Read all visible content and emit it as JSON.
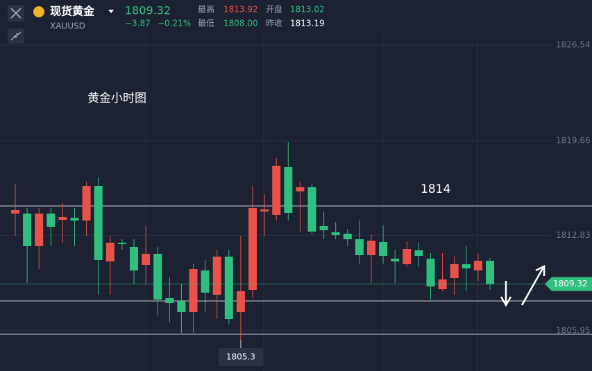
{
  "header": {
    "name": "现货黄金",
    "code": "XAUUSD",
    "price": "1809.32",
    "change": "−3.87",
    "change_pct": "−0.21%",
    "stats": [
      {
        "label": "最高",
        "value": "1813.92"
      },
      {
        "label": "开盘",
        "value": "1813.02"
      },
      {
        "label": "最低",
        "value": "1808.00"
      },
      {
        "label": "昨收",
        "value": "1813.19"
      }
    ]
  },
  "chart_data": {
    "type": "candlestick",
    "title": "黄金小时图",
    "open": [
      1814.4,
      1814.4,
      1812.05,
      1814.4,
      1813.95,
      1814.1,
      1813.9,
      1816.4,
      1810.95,
      1812.3,
      1812.0,
      1810.7,
      1811.5,
      1808.3,
      1808.1,
      1807.3,
      1810.3,
      1808.55,
      1811.3,
      1807.3,
      1808.9,
      1814.55,
      1814.3,
      1817.75,
      1816.0,
      1816.3,
      1813.5,
      1813.05,
      1812.95,
      1812.55,
      1811.4,
      1812.35,
      1811.15,
      1810.75,
      1811.75,
      1811.15,
      1808.95,
      1809.75,
      1810.75,
      1810.3,
      1811.0
    ],
    "close": [
      1814.65,
      1812.05,
      1814.4,
      1813.45,
      1814.15,
      1813.9,
      1816.4,
      1811.05,
      1812.3,
      1812.2,
      1810.3,
      1811.5,
      1808.2,
      1807.95,
      1807.3,
      1810.4,
      1808.7,
      1811.3,
      1806.8,
      1808.8,
      1814.8,
      1814.7,
      1817.85,
      1814.45,
      1816.3,
      1813.1,
      1813.2,
      1812.85,
      1812.55,
      1811.4,
      1812.45,
      1811.35,
      1810.95,
      1811.85,
      1811.35,
      1809.15,
      1809.65,
      1810.75,
      1810.45,
      1811.0,
      1809.32
    ],
    "high": [
      1816.55,
      1814.8,
      1814.8,
      1814.8,
      1815.15,
      1814.8,
      1816.7,
      1817.05,
      1812.8,
      1812.55,
      1812.55,
      1813.5,
      1812.0,
      1809.8,
      1809.3,
      1810.8,
      1811.05,
      1811.8,
      1811.8,
      1812.8,
      1816.4,
      1815.8,
      1818.4,
      1819.55,
      1816.7,
      1816.55,
      1814.55,
      1813.8,
      1813.3,
      1813.9,
      1812.9,
      1813.55,
      1811.8,
      1812.4,
      1812.3,
      1811.55,
      1811.55,
      1811.3,
      1812.05,
      1811.5,
      1811.2
    ],
    "low": [
      1812.8,
      1809.4,
      1810.4,
      1812.05,
      1812.3,
      1812.05,
      1812.8,
      1808.55,
      1808.55,
      1811.8,
      1809.3,
      1809.3,
      1807.05,
      1806.55,
      1805.8,
      1805.8,
      1807.3,
      1806.8,
      1806.4,
      1805.3,
      1808.3,
      1812.8,
      1813.9,
      1813.9,
      1813.05,
      1812.9,
      1812.55,
      1812.55,
      1812.05,
      1810.8,
      1809.4,
      1810.8,
      1809.4,
      1810.55,
      1810.55,
      1808.2,
      1808.8,
      1808.55,
      1808.8,
      1809.55,
      1808.9
    ],
    "ylim": [
      1803.05,
      1829.8
    ],
    "yticks": [
      1826.54,
      1819.66,
      1812.83,
      1805.95
    ],
    "hlines": [
      1814.95,
      1808.1,
      1805.7
    ],
    "annotation": "1814",
    "up_color": "#e8524a",
    "down_color": "#2fbf7f"
  }
}
